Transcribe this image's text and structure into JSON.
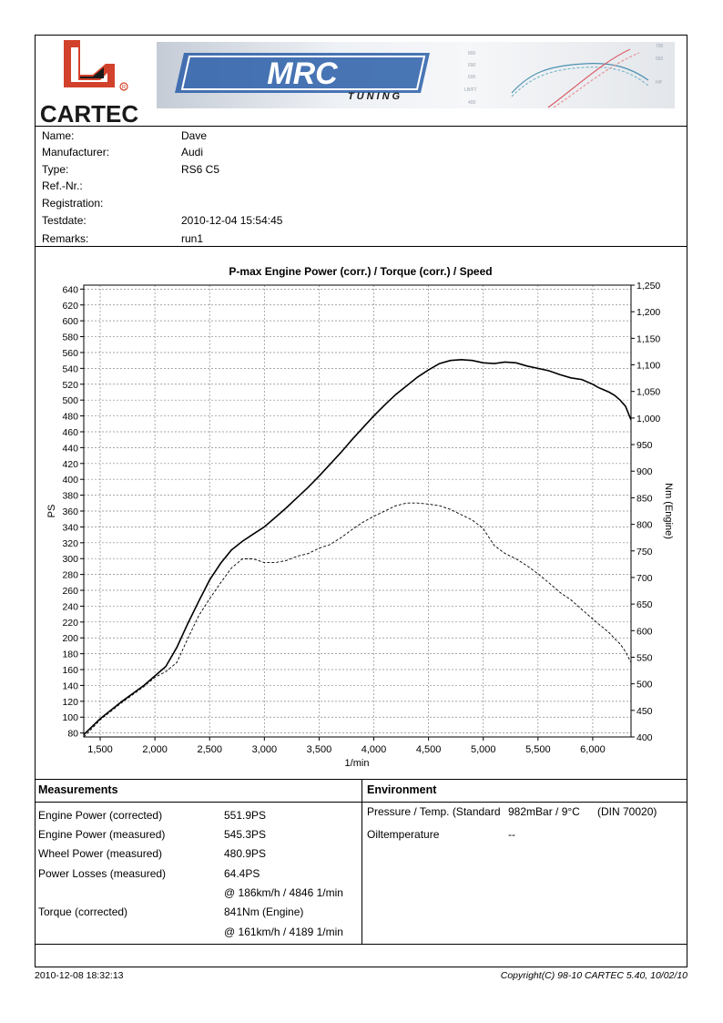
{
  "brand": {
    "name": "CARTEC",
    "colors": {
      "logo_red": "#d2412b",
      "logo_black": "#1a1a1a",
      "banner_blue": "#2a5ea8"
    }
  },
  "banner": {
    "logo_text": "MRC",
    "sub_text": "TUNING",
    "mini_axis_left": [
      "800",
      "690",
      "600",
      "LB/FT",
      "400"
    ],
    "mini_axis_right": [
      "700",
      "650",
      "",
      "HP",
      ""
    ]
  },
  "vehicle": [
    {
      "label": "Name:",
      "value": "Dave"
    },
    {
      "label": "Manufacturer:",
      "value": "Audi"
    },
    {
      "label": "Type:",
      "value": "RS6 C5"
    },
    {
      "label": "Ref.-Nr.:",
      "value": ""
    },
    {
      "label": "Registration:",
      "value": ""
    },
    {
      "label": "Testdate:",
      "value": "2010-12-04 15:54:45"
    },
    {
      "label": "Remarks:",
      "value": "run1"
    }
  ],
  "chart_data": {
    "type": "line",
    "title": "P-max Engine Power (corr.) / Torque (corr.) / Speed",
    "xlabel": "1/min",
    "ylabel": "PS",
    "y2label": "Nm (Engine)",
    "xlim": [
      1350,
      6350
    ],
    "ylim": [
      75,
      645
    ],
    "y2lim": [
      400,
      1250
    ],
    "x_ticks": [
      1500,
      2000,
      2500,
      3000,
      3500,
      4000,
      4500,
      5000,
      5500,
      6000
    ],
    "x_tick_labels": [
      "1,500",
      "2,000",
      "2,500",
      "3,000",
      "3,500",
      "4,000",
      "4,500",
      "5,000",
      "5,500",
      "6,000"
    ],
    "y_ticks": [
      80,
      100,
      120,
      140,
      160,
      180,
      200,
      220,
      240,
      260,
      280,
      300,
      320,
      340,
      360,
      380,
      400,
      420,
      440,
      460,
      480,
      500,
      520,
      540,
      560,
      580,
      600,
      620,
      640
    ],
    "y2_ticks": [
      400,
      450,
      500,
      550,
      600,
      650,
      700,
      750,
      800,
      850,
      900,
      950,
      1000,
      1050,
      1100,
      1150,
      1200,
      1250
    ],
    "y2_tick_labels": [
      "400",
      "450",
      "500",
      "550",
      "600",
      "650",
      "700",
      "750",
      "800",
      "850",
      "900",
      "950",
      "1,000",
      "1,050",
      "1,100",
      "1,150",
      "1,200",
      "1,250"
    ],
    "grid": true,
    "series": [
      {
        "axis": "left",
        "style": "solid",
        "x": [
          1350,
          1500,
          1700,
          1900,
          2000,
          2100,
          2200,
          2300,
          2400,
          2500,
          2600,
          2700,
          2800,
          2900,
          3000,
          3100,
          3200,
          3300,
          3400,
          3500,
          3600,
          3700,
          3800,
          3900,
          4000,
          4100,
          4200,
          4300,
          4400,
          4500,
          4600,
          4700,
          4800,
          4900,
          5000,
          5100,
          5200,
          5300,
          5400,
          5500,
          5600,
          5700,
          5800,
          5900,
          6000,
          6050,
          6100,
          6150,
          6200,
          6250,
          6300,
          6350
        ],
        "y": [
          78,
          98,
          120,
          140,
          152,
          164,
          188,
          218,
          246,
          273,
          294,
          311,
          322,
          331,
          340,
          352,
          364,
          377,
          390,
          404,
          419,
          434,
          450,
          465,
          480,
          494,
          507,
          518,
          529,
          538,
          546,
          550,
          551,
          550,
          547,
          546,
          548,
          547,
          543,
          540,
          537,
          532,
          528,
          526,
          520,
          516,
          513,
          510,
          506,
          500,
          492,
          475
        ]
      },
      {
        "axis": "right",
        "style": "dashed",
        "x": [
          1350,
          1500,
          1700,
          1900,
          2000,
          2100,
          2200,
          2300,
          2400,
          2500,
          2600,
          2700,
          2800,
          2900,
          3000,
          3100,
          3200,
          3300,
          3400,
          3500,
          3600,
          3700,
          3800,
          3900,
          4000,
          4100,
          4200,
          4300,
          4400,
          4500,
          4600,
          4700,
          4800,
          4900,
          5000,
          5100,
          5200,
          5300,
          5400,
          5500,
          5600,
          5700,
          5800,
          5900,
          6000,
          6050,
          6100,
          6150,
          6200,
          6250,
          6300,
          6350
        ],
        "y": [
          400,
          432,
          465,
          495,
          512,
          523,
          540,
          585,
          628,
          660,
          690,
          718,
          735,
          735,
          728,
          728,
          732,
          740,
          745,
          755,
          762,
          775,
          790,
          804,
          815,
          825,
          835,
          840,
          840,
          838,
          835,
          828,
          818,
          808,
          792,
          760,
          745,
          735,
          722,
          707,
          690,
          672,
          658,
          640,
          622,
          613,
          605,
          596,
          585,
          575,
          560,
          540
        ]
      }
    ]
  },
  "measurements": {
    "title": "Measurements",
    "rows": [
      {
        "label": "Engine Power (corrected)",
        "value": "551.9PS"
      },
      {
        "label": "Engine Power (measured)",
        "value": "545.3PS"
      },
      {
        "label": "Wheel Power (measured)",
        "value": "480.9PS"
      },
      {
        "label": "Power Losses (measured)",
        "value": "64.4PS"
      },
      {
        "label": "",
        "value": "@ 186km/h / 4846 1/min"
      },
      {
        "label": "Torque (corrected)",
        "value": "841Nm (Engine)"
      },
      {
        "label": "",
        "value": "@ 161km/h / 4189 1/min"
      }
    ]
  },
  "environment": {
    "title": "Environment",
    "pressure_label": "Pressure / Temp. (Standard",
    "pressure_value": "982mBar / 9°C",
    "pressure_std": "(DIN 70020)",
    "oil_label": "Oiltemperature",
    "oil_value": "--"
  },
  "footer": {
    "printed": "2010-12-08 18:32:13",
    "copyright": "Copyright(C) 98-10 CARTEC 5.40, 10/02/10"
  }
}
